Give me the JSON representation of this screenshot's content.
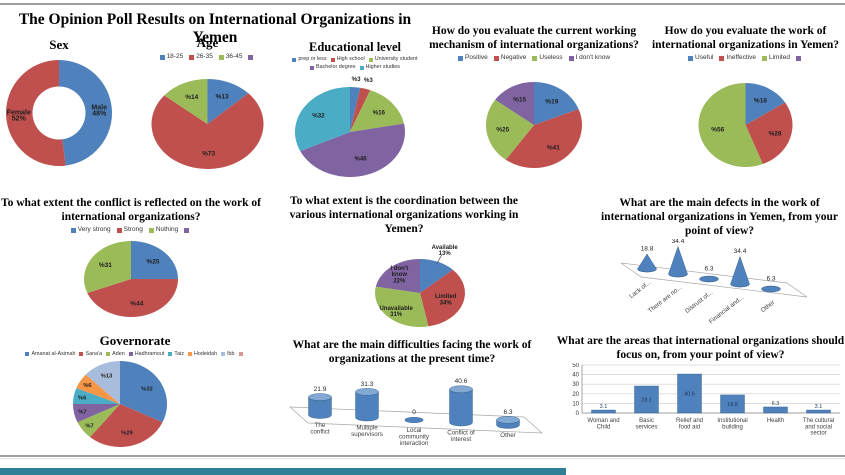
{
  "page": {
    "title": "The Opinion Poll Results on International Organizations in Yemen"
  },
  "palette": {
    "blue": "#4F81BD",
    "blue_top": "#81A9D3",
    "blue_dark": "#2F5A87",
    "red": "#C0504D",
    "green": "#9BBB59",
    "purple": "#8064A2",
    "teal": "#4BACC6",
    "orange": "#F79646",
    "lightblue": "#A7BDDB",
    "rose": "#D99694",
    "label": "#1f1f1f",
    "accent_bar": "#2E7F95"
  },
  "chart_data": [
    {
      "id": "sex",
      "type": "pie",
      "donut": true,
      "title": "Sex",
      "slices": [
        {
          "label": "Male\n48%",
          "value": 48,
          "color": "blue",
          "lr": 0.76
        },
        {
          "label": "Female\n52%",
          "value": 52,
          "color": "red",
          "lr": 0.76
        }
      ]
    },
    {
      "id": "age",
      "type": "pie",
      "title": "Age",
      "legend": [
        {
          "label": "18-25",
          "color": "blue"
        },
        {
          "label": "26-35",
          "color": "red"
        },
        {
          "label": "36-45",
          "color": "green"
        },
        {
          "label": "",
          "color": "purple"
        }
      ],
      "slices": [
        {
          "label": "%13",
          "value": 13,
          "color": "blue"
        },
        {
          "label": "%73",
          "value": 73,
          "color": "red"
        },
        {
          "label": "%14",
          "value": 14,
          "color": "green"
        }
      ]
    },
    {
      "id": "education",
      "type": "pie",
      "title": "Educational level",
      "legend": [
        {
          "label": "prep or less",
          "color": "blue"
        },
        {
          "label": "High school",
          "color": "red"
        },
        {
          "label": "University student",
          "color": "green"
        },
        {
          "label": "Bachelor degree",
          "color": "purple"
        },
        {
          "label": "Higher studies",
          "color": "teal"
        }
      ],
      "slices": [
        {
          "label": "%3",
          "value": 3,
          "color": "blue",
          "lr": 1.18
        },
        {
          "label": "%3",
          "value": 3,
          "color": "red",
          "lr": 1.2
        },
        {
          "label": "%16",
          "value": 16,
          "color": "green",
          "lr": 0.68
        },
        {
          "label": "%46",
          "value": 46,
          "color": "purple",
          "lr": 0.62
        },
        {
          "label": "%32",
          "value": 32,
          "color": "teal",
          "lr": 0.68
        }
      ]
    },
    {
      "id": "mechanism",
      "type": "pie",
      "title": "How do you evaluate the current working mechanism of international organizations?",
      "legend": [
        {
          "label": "Positive",
          "color": "blue"
        },
        {
          "label": "Negative",
          "color": "red"
        },
        {
          "label": "Useless",
          "color": "green"
        },
        {
          "label": "I don't know",
          "color": "purple"
        }
      ],
      "slices": [
        {
          "label": "%19",
          "value": 19,
          "color": "blue"
        },
        {
          "label": "%41",
          "value": 41,
          "color": "red"
        },
        {
          "label": "%25",
          "value": 25,
          "color": "green"
        },
        {
          "label": "%15",
          "value": 15,
          "color": "purple"
        }
      ]
    },
    {
      "id": "work",
      "type": "pie",
      "title": "How do you evaluate the work of international organizations in Yemen?",
      "legend": [
        {
          "label": "Useful",
          "color": "blue"
        },
        {
          "label": "Ineffective",
          "color": "red"
        },
        {
          "label": "Limited",
          "color": "green"
        },
        {
          "label": "",
          "color": "purple"
        }
      ],
      "slices": [
        {
          "label": "%16",
          "value": 16,
          "color": "blue"
        },
        {
          "label": "%28",
          "value": 28,
          "color": "red"
        },
        {
          "label": "%56",
          "value": 56,
          "color": "green",
          "lr": 0.6
        }
      ]
    },
    {
      "id": "conflict",
      "type": "pie",
      "title": "To what  extent  the conflict is  reflected on the work of international organizations?",
      "legend": [
        {
          "label": "Very strong",
          "color": "blue"
        },
        {
          "label": "Strong",
          "color": "red"
        },
        {
          "label": "Nothing",
          "color": "green"
        },
        {
          "label": "",
          "color": "purple"
        }
      ],
      "slices": [
        {
          "label": "%25",
          "value": 25,
          "color": "blue"
        },
        {
          "label": "%44",
          "value": 44,
          "color": "red"
        },
        {
          "label": "%31",
          "value": 31,
          "color": "green"
        }
      ]
    },
    {
      "id": "coordination",
      "type": "pie",
      "title": "To what extent is the coordination between the various international organizations working in Yemen?",
      "slices": [
        {
          "label": "Available\n13%",
          "value": 13,
          "color": "blue",
          "lr": 1.38,
          "callout": true
        },
        {
          "label": "Limited\n34%",
          "value": 34,
          "color": "red",
          "lr": 0.6
        },
        {
          "label": "Unavailable\n31%",
          "value": 31,
          "color": "green",
          "lr": 0.75
        },
        {
          "label": "I don't\nknow\n22%",
          "value": 22,
          "color": "purple",
          "lr": 0.72
        }
      ]
    },
    {
      "id": "defects",
      "type": "cone3d",
      "title": "What are the main defects in the work of international organizations in Yemen, from your point of view?",
      "categories": [
        "Lack of...",
        "There are no...",
        "Distrust of...",
        "Financial and...",
        "Other"
      ],
      "values": [
        18.8,
        34.4,
        6.3,
        34.4,
        6.3
      ],
      "color": "blue"
    },
    {
      "id": "governorate",
      "type": "pie",
      "title": "Governorate",
      "legend": [
        {
          "label": "Amanat al-Asimah",
          "color": "blue"
        },
        {
          "label": "Sana'a",
          "color": "red"
        },
        {
          "label": "Aden",
          "color": "green"
        },
        {
          "label": "Hadhramout",
          "color": "purple"
        },
        {
          "label": "Taiz",
          "color": "teal"
        },
        {
          "label": "Hodeidah",
          "color": "orange"
        },
        {
          "label": "Ibb",
          "color": "lightblue"
        },
        {
          "label": "",
          "color": "rose"
        }
      ],
      "slices": [
        {
          "label": "%32",
          "value": 32,
          "color": "blue",
          "lr": 0.68
        },
        {
          "label": "%29",
          "value": 29,
          "color": "red",
          "lr": 0.68
        },
        {
          "label": "%7",
          "value": 7,
          "color": "green",
          "lr": 0.82
        },
        {
          "label": "%7",
          "value": 7,
          "color": "purple",
          "lr": 0.82
        },
        {
          "label": "%6",
          "value": 6,
          "color": "teal",
          "lr": 0.82
        },
        {
          "label": "%6",
          "value": 6,
          "color": "orange",
          "lr": 0.82
        },
        {
          "label": "%13",
          "value": 13,
          "color": "lightblue",
          "lr": 0.72
        }
      ]
    },
    {
      "id": "difficulties",
      "type": "cylinder3d",
      "title": "What are the main difficulties facing the work of organizations at the present time?",
      "categories": [
        "The conflict",
        "Multiple supervisors",
        "Local community interaction",
        "Conflict of interest",
        "Other"
      ],
      "values": [
        21.9,
        31.3,
        0,
        40.6,
        6.3
      ],
      "color": "blue"
    },
    {
      "id": "focus",
      "type": "bar",
      "title": "What are the areas that international organizations should focus on, from your point of view?",
      "categories": [
        "Woman and Child",
        "Basic services",
        "Relief and food aid",
        "Institutional building",
        "Health",
        "The cultural and social sector"
      ],
      "values": [
        3.1,
        28.1,
        40.6,
        18.8,
        6.3,
        3.1
      ],
      "ylim": [
        0,
        50
      ],
      "yticks": [
        0,
        10,
        20,
        30,
        40,
        50
      ],
      "color": "blue"
    }
  ]
}
